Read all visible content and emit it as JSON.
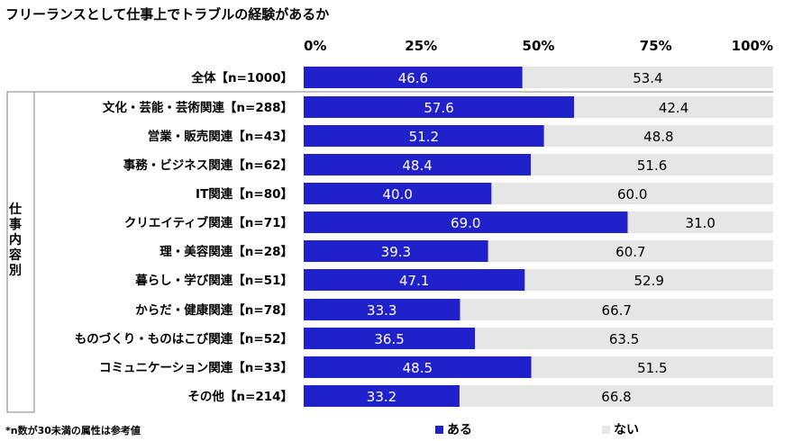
{
  "title": "フリーランスとして仕事上でトラブルの経験があるか",
  "footnote": "*n数が30未満の属性は参考値",
  "group_label": "仕事内容別",
  "colors": {
    "aru": "#2121CC",
    "nai": "#E6E6E6",
    "text_on_bar": "#ffffff",
    "text_off_bar": "#000000"
  },
  "legend": [
    {
      "label": "ある",
      "color": "#2121CC"
    },
    {
      "label": "ない",
      "color": "#E6E6E6"
    }
  ],
  "chart_data": {
    "type": "bar",
    "orientation": "horizontal",
    "stacked": true,
    "percent_stacked": true,
    "title": "フリーランスとして仕事上でトラブルの経験があるか",
    "xlim": [
      0,
      100
    ],
    "x_ticks": [
      "0%",
      "25%",
      "50%",
      "75%",
      "100%"
    ],
    "x_tick_values": [
      0,
      25,
      50,
      75,
      100
    ],
    "categories": [
      "全体【n=1000】",
      "文化・芸能・芸術関連【n=288】",
      "営業・販売関連【n=43】",
      "事務・ビジネス関連【n=62】",
      "IT関連【n=80】",
      "クリエイティブ関連【n=71】",
      "理・美容関連【n=28】",
      "暮らし・学び関連【n=51】",
      "からだ・健康関連【n=78】",
      "ものづくり・ものはこび関連【n=52】",
      "コミュニケーション関連【n=33】",
      "その他【n=214】"
    ],
    "series": [
      {
        "name": "ある",
        "values": [
          46.6,
          57.6,
          51.2,
          48.4,
          40.0,
          69.0,
          39.3,
          47.1,
          33.3,
          36.5,
          48.5,
          33.2
        ],
        "labels": [
          "46.6",
          "57.6",
          "51.2",
          "48.4",
          "40.0",
          "69.0",
          "39.3",
          "47.1",
          "33.3",
          "36.5",
          "48.5",
          "33.2"
        ]
      },
      {
        "name": "ない",
        "values": [
          53.4,
          42.4,
          48.8,
          51.6,
          60.0,
          31.0,
          60.7,
          52.9,
          66.7,
          63.5,
          51.5,
          66.8
        ],
        "labels": [
          "53.4",
          "42.4",
          "48.8",
          "51.6",
          "60.0",
          "31.0",
          "60.7",
          "52.9",
          "66.7",
          "63.5",
          "51.5",
          "66.8"
        ]
      }
    ],
    "legend_position": "bottom",
    "grid": false
  }
}
